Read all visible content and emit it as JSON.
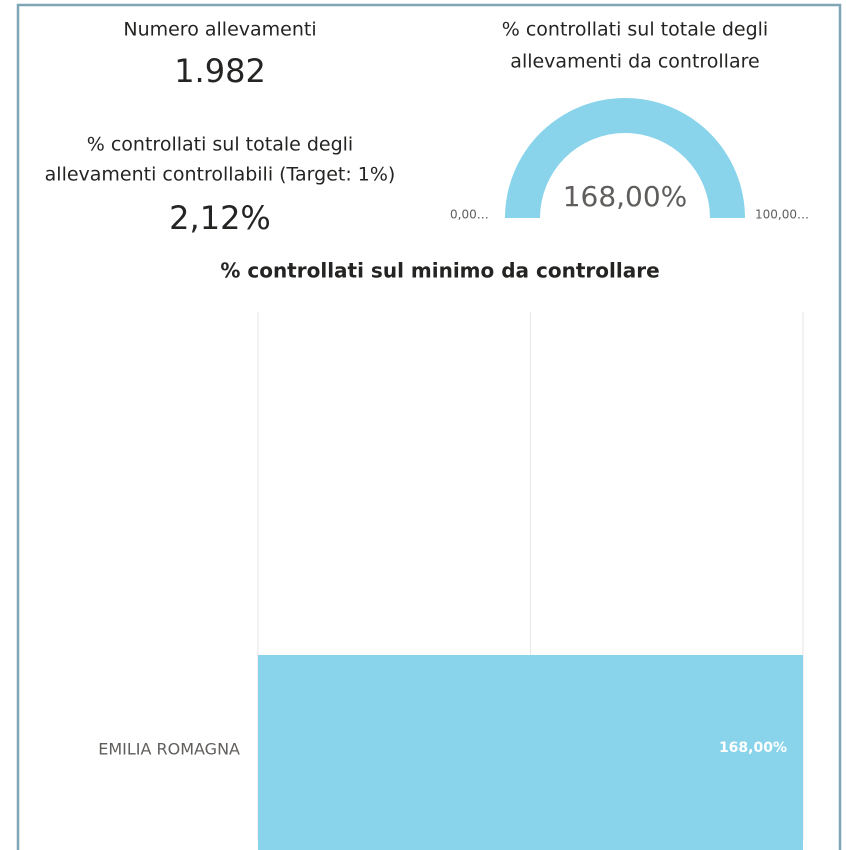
{
  "cards": [
    {
      "label": "Numero allevamenti",
      "value": "1.982"
    },
    {
      "label_lines": [
        "% controllati sul totale degli",
        "allevamenti controllabili (Target: 1%)"
      ],
      "value": "2,12%"
    }
  ],
  "gauge": {
    "title_lines": [
      "% controllati sul totale degli",
      "allevamenti da controllare"
    ],
    "value": 168,
    "value_label": "168,00%",
    "color": "#8ad4eb",
    "min": {
      "value": 0,
      "label": "0,00…"
    },
    "max": {
      "value": 100,
      "label": "100,00…"
    }
  },
  "chart_data": {
    "type": "bar",
    "orientation": "horizontal",
    "title": "% controllati sul minimo da controllare",
    "categories": [
      "EMILIA ROMAGNA"
    ],
    "values": [
      168
    ],
    "value_labels": [
      "168,00%"
    ],
    "color": "#8ad4eb",
    "xlim": [
      0,
      168
    ],
    "xticks": [
      0,
      84,
      168
    ],
    "grid": true
  }
}
